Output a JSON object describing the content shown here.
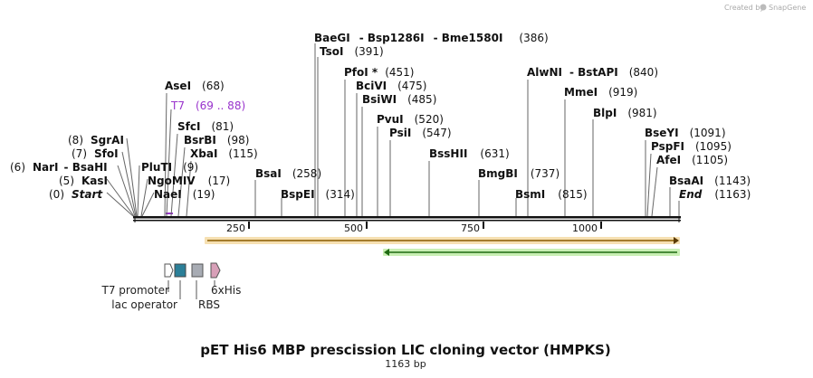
{
  "credit": {
    "text": "Created by",
    "brand": "SnapGene"
  },
  "map_title": "pET His6 MBP prescission LIC cloning vector (HMPKS)",
  "map_length": "1163 bp",
  "ruler": {
    "ticks": [
      "250",
      "500",
      "750",
      "1000"
    ]
  },
  "sites": [
    {
      "prefix": "(0)",
      "name": "Start",
      "suffix": "",
      "italic": true
    },
    {
      "prefix": "(5)",
      "name": "KasI",
      "suffix": ""
    },
    {
      "prefix": "(6)",
      "name": "NarI",
      "suffix": ""
    },
    {
      "prefix": "",
      "name": "- BsaHI",
      "suffix": ""
    },
    {
      "prefix": "(7)",
      "name": "SfoI",
      "suffix": ""
    },
    {
      "prefix": "(8)",
      "name": "SgrAI",
      "suffix": ""
    },
    {
      "prefix": "",
      "name": "PluTI",
      "suffix": "(9)"
    },
    {
      "prefix": "",
      "name": "NgoMIV",
      "suffix": "(17)"
    },
    {
      "prefix": "",
      "name": "NaeI",
      "suffix": "(19)"
    },
    {
      "prefix": "",
      "name": "AseI",
      "suffix": "(68)"
    },
    {
      "prefix": "",
      "name": "SfcI",
      "suffix": "(81)"
    },
    {
      "prefix": "",
      "name": "BsrBI",
      "suffix": "(98)"
    },
    {
      "prefix": "",
      "name": "XbaI",
      "suffix": "(115)"
    },
    {
      "prefix": "",
      "name": "BsaI",
      "suffix": "(258)"
    },
    {
      "prefix": "",
      "name": "BspEI",
      "suffix": "(314)"
    },
    {
      "prefix": "",
      "name": "BaeGI",
      "suffix": ""
    },
    {
      "prefix": "",
      "name": "- Bsp1286I",
      "suffix": ""
    },
    {
      "prefix": "",
      "name": "- Bme1580I",
      "suffix": "(386)"
    },
    {
      "prefix": "",
      "name": "TsoI",
      "suffix": "(391)"
    },
    {
      "prefix": "",
      "name": "PfoI *",
      "suffix": "(451)"
    },
    {
      "prefix": "",
      "name": "BciVI",
      "suffix": "(475)"
    },
    {
      "prefix": "",
      "name": "BsiWI",
      "suffix": "(485)"
    },
    {
      "prefix": "",
      "name": "PvuI",
      "suffix": "(520)"
    },
    {
      "prefix": "",
      "name": "PsiI",
      "suffix": "(547)"
    },
    {
      "prefix": "",
      "name": "BssHII",
      "suffix": "(631)"
    },
    {
      "prefix": "",
      "name": "BmgBI",
      "suffix": "(737)"
    },
    {
      "prefix": "",
      "name": "BsmI",
      "suffix": "(815)"
    },
    {
      "prefix": "",
      "name": "AlwNI",
      "suffix": ""
    },
    {
      "prefix": "",
      "name": "- BstAPI",
      "suffix": "(840)"
    },
    {
      "prefix": "",
      "name": "MmeI",
      "suffix": "(919)"
    },
    {
      "prefix": "",
      "name": "BlpI",
      "suffix": "(981)"
    },
    {
      "prefix": "",
      "name": "BseYI",
      "suffix": "(1091)"
    },
    {
      "prefix": "",
      "name": "PspFI",
      "suffix": "(1095)"
    },
    {
      "prefix": "",
      "name": "AfeI",
      "suffix": "(1105)"
    },
    {
      "prefix": "",
      "name": "BsaAI",
      "suffix": "(1143)"
    },
    {
      "prefix": "",
      "name": "End",
      "suffix": "(1163)",
      "italic": true
    }
  ],
  "t7_feature": {
    "name": "T7",
    "range": "(69 .. 88)",
    "color": "#9933cc"
  },
  "features": [
    {
      "name": "T7 promoter",
      "color": "#ffffff"
    },
    {
      "name": "lac operator",
      "color": "#2b7f98"
    },
    {
      "name": "RBS",
      "color": "#a8acb4"
    },
    {
      "name": "6xHis",
      "color": "#d8a0b8"
    }
  ],
  "bars": [
    {
      "name": "orange-arrow",
      "direction": "forward",
      "color": "#e9a33a"
    },
    {
      "name": "green-arrow",
      "direction": "reverse",
      "color": "#7fd35b"
    }
  ]
}
